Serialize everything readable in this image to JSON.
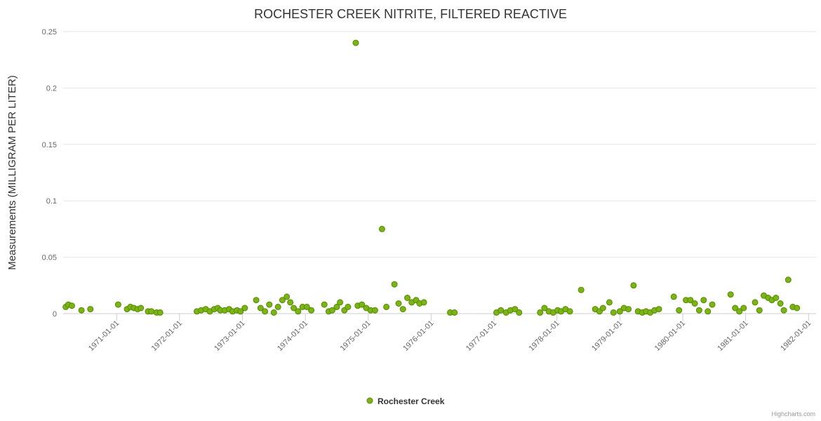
{
  "chart": {
    "credits": "Highcharts.com"
  },
  "chart_data": {
    "type": "scatter",
    "title": "ROCHESTER CREEK NITRITE, FILTERED REACTIVE",
    "xlabel": "",
    "ylabel": "Measurements (MILLIGRAM PER LITER)",
    "ylim": [
      0,
      0.25
    ],
    "y_ticks": [
      0,
      0.05,
      0.1,
      0.15,
      0.2,
      0.25
    ],
    "y_tick_labels": [
      "0",
      "0.05",
      "0.1",
      "0.15",
      "0.2",
      "0.25"
    ],
    "x_tick_years": [
      1971,
      1972,
      1973,
      1974,
      1975,
      1976,
      1977,
      1978,
      1979,
      1980,
      1981,
      1982
    ],
    "x_tick_labels": [
      "1971-01-01",
      "1972-01-01",
      "1973-01-01",
      "1974-01-01",
      "1975-01-01",
      "1976-01-01",
      "1977-01-01",
      "1978-01-01",
      "1979-01-01",
      "1980-01-01",
      "1981-01-01",
      "1982-01-01"
    ],
    "xlim_years": [
      1970.15,
      1982.12
    ],
    "grid": true,
    "legend_position": "bottom",
    "grid_color": "#e6e6e6",
    "axis_line_color": "#cccccc",
    "series": [
      {
        "name": "Rochester Creek",
        "color": "#7cb317",
        "line_color": "#558b00",
        "points": [
          [
            "1970-03-10",
            0.006
          ],
          [
            "1970-03-25",
            0.008
          ],
          [
            "1970-04-15",
            0.007
          ],
          [
            "1970-06-10",
            0.003
          ],
          [
            "1970-08-01",
            0.004
          ],
          [
            "1971-01-10",
            0.008
          ],
          [
            "1971-03-01",
            0.004
          ],
          [
            "1971-03-20",
            0.006
          ],
          [
            "1971-04-10",
            0.005
          ],
          [
            "1971-05-01",
            0.004
          ],
          [
            "1971-05-20",
            0.005
          ],
          [
            "1971-07-01",
            0.002
          ],
          [
            "1971-07-20",
            0.002
          ],
          [
            "1971-08-20",
            0.001
          ],
          [
            "1971-09-10",
            0.001
          ],
          [
            "1972-04-10",
            0.002
          ],
          [
            "1972-05-05",
            0.003
          ],
          [
            "1972-06-01",
            0.004
          ],
          [
            "1972-06-25",
            0.002
          ],
          [
            "1972-07-20",
            0.004
          ],
          [
            "1972-08-10",
            0.005
          ],
          [
            "1972-08-25",
            0.003
          ],
          [
            "1972-09-20",
            0.003
          ],
          [
            "1972-10-15",
            0.004
          ],
          [
            "1972-11-05",
            0.002
          ],
          [
            "1972-11-30",
            0.003
          ],
          [
            "1972-12-20",
            0.002
          ],
          [
            "1973-01-15",
            0.005
          ],
          [
            "1973-03-20",
            0.012
          ],
          [
            "1973-04-15",
            0.005
          ],
          [
            "1973-05-10",
            0.002
          ],
          [
            "1973-06-05",
            0.008
          ],
          [
            "1973-07-01",
            0.001
          ],
          [
            "1973-07-25",
            0.006
          ],
          [
            "1973-08-20",
            0.012
          ],
          [
            "1973-09-15",
            0.015
          ],
          [
            "1973-10-05",
            0.01
          ],
          [
            "1973-10-25",
            0.005
          ],
          [
            "1973-11-20",
            0.002
          ],
          [
            "1973-12-15",
            0.006
          ],
          [
            "1974-01-10",
            0.006
          ],
          [
            "1974-02-05",
            0.003
          ],
          [
            "1974-04-20",
            0.008
          ],
          [
            "1974-05-15",
            0.002
          ],
          [
            "1974-06-05",
            0.003
          ],
          [
            "1974-07-01",
            0.006
          ],
          [
            "1974-07-20",
            0.01
          ],
          [
            "1974-08-15",
            0.003
          ],
          [
            "1974-09-05",
            0.006
          ],
          [
            "1974-10-20",
            0.24
          ],
          [
            "1974-11-01",
            0.007
          ],
          [
            "1974-11-25",
            0.008
          ],
          [
            "1974-12-20",
            0.005
          ],
          [
            "1975-01-15",
            0.003
          ],
          [
            "1975-02-10",
            0.003
          ],
          [
            "1975-03-20",
            0.075
          ],
          [
            "1975-04-15",
            0.006
          ],
          [
            "1975-06-01",
            0.026
          ],
          [
            "1975-06-25",
            0.009
          ],
          [
            "1975-07-20",
            0.004
          ],
          [
            "1975-08-15",
            0.014
          ],
          [
            "1975-09-10",
            0.01
          ],
          [
            "1975-10-05",
            0.012
          ],
          [
            "1975-10-25",
            0.009
          ],
          [
            "1975-11-20",
            0.01
          ],
          [
            "1976-04-20",
            0.001
          ],
          [
            "1976-05-15",
            0.001
          ],
          [
            "1977-01-15",
            0.001
          ],
          [
            "1977-02-10",
            0.003
          ],
          [
            "1977-03-10",
            0.001
          ],
          [
            "1977-04-05",
            0.003
          ],
          [
            "1977-05-01",
            0.004
          ],
          [
            "1977-05-25",
            0.001
          ],
          [
            "1977-09-25",
            0.001
          ],
          [
            "1977-10-20",
            0.005
          ],
          [
            "1977-11-15",
            0.002
          ],
          [
            "1977-12-10",
            0.001
          ],
          [
            "1978-01-05",
            0.003
          ],
          [
            "1978-01-25",
            0.002
          ],
          [
            "1978-02-20",
            0.004
          ],
          [
            "1978-03-15",
            0.002
          ],
          [
            "1978-05-20",
            0.021
          ],
          [
            "1978-08-10",
            0.004
          ],
          [
            "1978-09-05",
            0.002
          ],
          [
            "1978-09-25",
            0.005
          ],
          [
            "1978-11-01",
            0.01
          ],
          [
            "1978-11-25",
            0.001
          ],
          [
            "1979-01-01",
            0.002
          ],
          [
            "1979-01-25",
            0.005
          ],
          [
            "1979-02-20",
            0.004
          ],
          [
            "1979-03-20",
            0.025
          ],
          [
            "1979-04-15",
            0.002
          ],
          [
            "1979-05-10",
            0.001
          ],
          [
            "1979-06-01",
            0.002
          ],
          [
            "1979-06-25",
            0.001
          ],
          [
            "1979-07-20",
            0.003
          ],
          [
            "1979-08-15",
            0.004
          ],
          [
            "1979-11-10",
            0.015
          ],
          [
            "1979-12-10",
            0.003
          ],
          [
            "1980-01-20",
            0.012
          ],
          [
            "1980-02-15",
            0.012
          ],
          [
            "1980-03-10",
            0.009
          ],
          [
            "1980-04-05",
            0.003
          ],
          [
            "1980-05-01",
            0.012
          ],
          [
            "1980-05-25",
            0.002
          ],
          [
            "1980-06-20",
            0.008
          ],
          [
            "1980-10-05",
            0.017
          ],
          [
            "1980-11-01",
            0.005
          ],
          [
            "1980-11-25",
            0.002
          ],
          [
            "1980-12-20",
            0.005
          ],
          [
            "1981-02-25",
            0.01
          ],
          [
            "1981-03-20",
            0.003
          ],
          [
            "1981-04-15",
            0.016
          ],
          [
            "1981-05-10",
            0.014
          ],
          [
            "1981-06-01",
            0.012
          ],
          [
            "1981-06-25",
            0.014
          ],
          [
            "1981-07-20",
            0.009
          ],
          [
            "1981-08-10",
            0.003
          ],
          [
            "1981-09-05",
            0.03
          ],
          [
            "1981-10-01",
            0.006
          ],
          [
            "1981-10-25",
            0.005
          ]
        ]
      }
    ]
  }
}
